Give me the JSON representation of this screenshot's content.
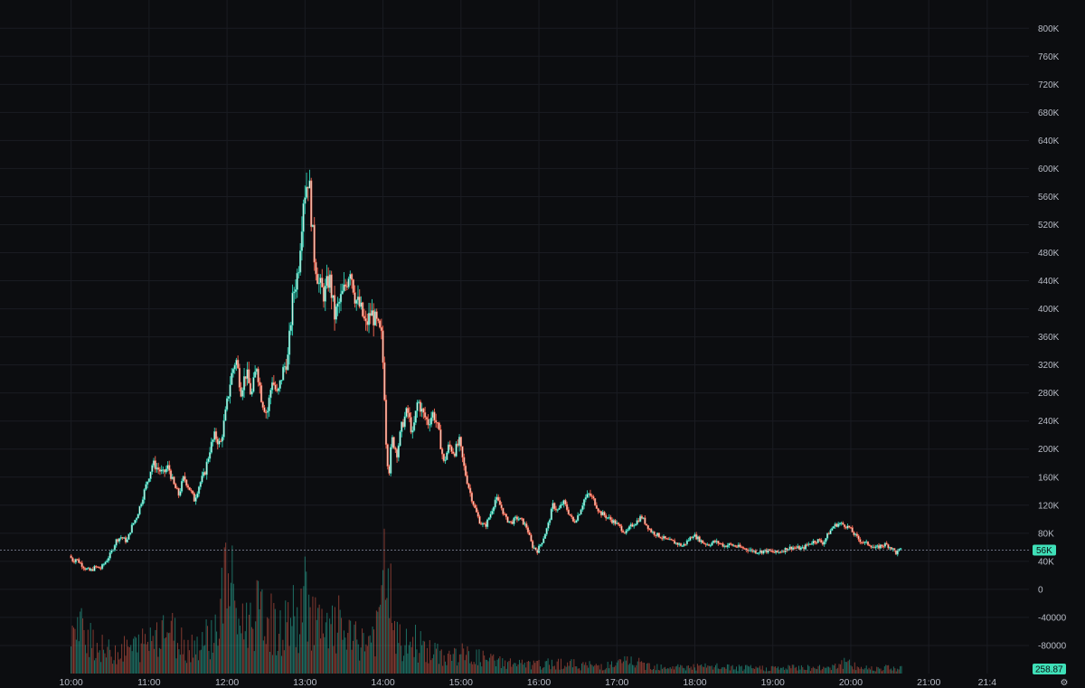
{
  "chart_data": {
    "type": "candlestick",
    "title": "",
    "xlabel": "",
    "ylabel": "",
    "price_axis": {
      "ticks": [
        "800K",
        "760K",
        "720K",
        "680K",
        "640K",
        "600K",
        "560K",
        "520K",
        "480K",
        "440K",
        "400K",
        "360K",
        "320K",
        "280K",
        "240K",
        "200K",
        "160K",
        "120K",
        "80K",
        "40K",
        "0",
        "-40000",
        "-80000"
      ],
      "tick_values": [
        800000,
        760000,
        720000,
        680000,
        640000,
        600000,
        560000,
        520000,
        480000,
        440000,
        400000,
        360000,
        320000,
        280000,
        240000,
        200000,
        160000,
        120000,
        80000,
        40000,
        0,
        -40000,
        -80000
      ],
      "ylim": [
        -120000,
        830000
      ]
    },
    "time_axis": {
      "ticks": [
        "10:00",
        "11:00",
        "12:00",
        "13:00",
        "14:00",
        "15:00",
        "16:00",
        "17:00",
        "18:00",
        "19:00",
        "20:00",
        "21:00",
        "21:4"
      ],
      "tick_minutes": [
        600,
        660,
        720,
        780,
        840,
        900,
        960,
        1020,
        1080,
        1140,
        1200,
        1260,
        1305
      ],
      "xlim_minutes": [
        594,
        1335
      ]
    },
    "last_price": {
      "value": 56000,
      "label": "56K"
    },
    "volume_badge": {
      "label": "258.87"
    },
    "colors": {
      "up": "#2dc0a8",
      "down": "#e7604d",
      "badge": "#3fe0b8",
      "grid": "#1a1c22",
      "last_line": "#6b7080"
    },
    "price_path": [
      [
        600,
        48000
      ],
      [
        603,
        40000
      ],
      [
        605,
        44000
      ],
      [
        608,
        38000
      ],
      [
        612,
        30000
      ],
      [
        616,
        26000
      ],
      [
        620,
        32000
      ],
      [
        624,
        30000
      ],
      [
        628,
        40000
      ],
      [
        632,
        52000
      ],
      [
        636,
        70000
      ],
      [
        640,
        75000
      ],
      [
        644,
        68000
      ],
      [
        648,
        90000
      ],
      [
        652,
        105000
      ],
      [
        656,
        130000
      ],
      [
        660,
        155000
      ],
      [
        664,
        180000
      ],
      [
        668,
        172000
      ],
      [
        672,
        165000
      ],
      [
        676,
        175000
      ],
      [
        680,
        150000
      ],
      [
        684,
        135000
      ],
      [
        688,
        160000
      ],
      [
        692,
        145000
      ],
      [
        696,
        128000
      ],
      [
        700,
        150000
      ],
      [
        704,
        165000
      ],
      [
        708,
        200000
      ],
      [
        712,
        220000
      ],
      [
        716,
        205000
      ],
      [
        720,
        250000
      ],
      [
        724,
        300000
      ],
      [
        728,
        330000
      ],
      [
        732,
        285000
      ],
      [
        736,
        310000
      ],
      [
        740,
        275000
      ],
      [
        744,
        320000
      ],
      [
        748,
        270000
      ],
      [
        752,
        250000
      ],
      [
        756,
        300000
      ],
      [
        760,
        275000
      ],
      [
        764,
        310000
      ],
      [
        768,
        330000
      ],
      [
        772,
        420000
      ],
      [
        776,
        455000
      ],
      [
        780,
        560000
      ],
      [
        784,
        590000
      ],
      [
        788,
        480000
      ],
      [
        792,
        435000
      ],
      [
        796,
        420000
      ],
      [
        800,
        445000
      ],
      [
        804,
        390000
      ],
      [
        808,
        410000
      ],
      [
        812,
        430000
      ],
      [
        816,
        460000
      ],
      [
        820,
        415000
      ],
      [
        824,
        400000
      ],
      [
        828,
        375000
      ],
      [
        832,
        395000
      ],
      [
        836,
        380000
      ],
      [
        840,
        360000
      ],
      [
        842,
        300000
      ],
      [
        844,
        190000
      ],
      [
        846,
        170000
      ],
      [
        848,
        215000
      ],
      [
        852,
        195000
      ],
      [
        856,
        235000
      ],
      [
        860,
        255000
      ],
      [
        864,
        220000
      ],
      [
        868,
        270000
      ],
      [
        872,
        250000
      ],
      [
        876,
        238000
      ],
      [
        880,
        252000
      ],
      [
        884,
        225000
      ],
      [
        888,
        180000
      ],
      [
        892,
        205000
      ],
      [
        896,
        195000
      ],
      [
        900,
        210000
      ],
      [
        904,
        170000
      ],
      [
        908,
        140000
      ],
      [
        912,
        115000
      ],
      [
        916,
        95000
      ],
      [
        920,
        90000
      ],
      [
        924,
        108000
      ],
      [
        928,
        130000
      ],
      [
        932,
        118000
      ],
      [
        936,
        100000
      ],
      [
        940,
        95000
      ],
      [
        944,
        102000
      ],
      [
        948,
        98000
      ],
      [
        952,
        88000
      ],
      [
        956,
        62000
      ],
      [
        960,
        55000
      ],
      [
        964,
        70000
      ],
      [
        968,
        90000
      ],
      [
        972,
        120000
      ],
      [
        976,
        112000
      ],
      [
        980,
        125000
      ],
      [
        984,
        110000
      ],
      [
        988,
        95000
      ],
      [
        992,
        108000
      ],
      [
        996,
        128000
      ],
      [
        1000,
        136000
      ],
      [
        1004,
        125000
      ],
      [
        1008,
        110000
      ],
      [
        1012,
        105000
      ],
      [
        1016,
        100000
      ],
      [
        1020,
        95000
      ],
      [
        1024,
        88000
      ],
      [
        1028,
        80000
      ],
      [
        1032,
        90000
      ],
      [
        1036,
        96000
      ],
      [
        1040,
        104000
      ],
      [
        1044,
        92000
      ],
      [
        1048,
        82000
      ],
      [
        1052,
        78000
      ],
      [
        1056,
        74000
      ],
      [
        1060,
        70000
      ],
      [
        1064,
        68000
      ],
      [
        1068,
        65000
      ],
      [
        1072,
        62000
      ],
      [
        1076,
        70000
      ],
      [
        1080,
        78000
      ],
      [
        1084,
        72000
      ],
      [
        1088,
        66000
      ],
      [
        1092,
        64000
      ],
      [
        1096,
        68000
      ],
      [
        1100,
        66000
      ],
      [
        1104,
        62000
      ],
      [
        1108,
        64000
      ],
      [
        1112,
        62000
      ],
      [
        1116,
        60000
      ],
      [
        1120,
        58000
      ],
      [
        1124,
        56000
      ],
      [
        1128,
        54000
      ],
      [
        1132,
        54000
      ],
      [
        1136,
        55000
      ],
      [
        1140,
        54000
      ],
      [
        1144,
        52000
      ],
      [
        1148,
        55000
      ],
      [
        1152,
        58000
      ],
      [
        1156,
        60000
      ],
      [
        1160,
        59000
      ],
      [
        1164,
        58000
      ],
      [
        1168,
        64000
      ],
      [
        1172,
        68000
      ],
      [
        1176,
        70000
      ],
      [
        1180,
        66000
      ],
      [
        1184,
        80000
      ],
      [
        1188,
        90000
      ],
      [
        1192,
        94000
      ],
      [
        1196,
        92000
      ],
      [
        1200,
        88000
      ],
      [
        1204,
        78000
      ],
      [
        1208,
        70000
      ],
      [
        1212,
        66000
      ],
      [
        1216,
        64000
      ],
      [
        1220,
        58000
      ],
      [
        1224,
        62000
      ],
      [
        1228,
        64000
      ],
      [
        1232,
        60000
      ],
      [
        1236,
        52000
      ],
      [
        1239,
        56000
      ]
    ],
    "volume_peaks": [
      [
        604,
        0.35
      ],
      [
        612,
        0.45
      ],
      [
        620,
        0.25
      ],
      [
        628,
        0.2
      ],
      [
        640,
        0.22
      ],
      [
        650,
        0.25
      ],
      [
        660,
        0.3
      ],
      [
        664,
        0.4
      ],
      [
        672,
        0.45
      ],
      [
        680,
        0.35
      ],
      [
        690,
        0.25
      ],
      [
        700,
        0.3
      ],
      [
        712,
        0.4
      ],
      [
        720,
        0.95
      ],
      [
        724,
        0.75
      ],
      [
        730,
        0.45
      ],
      [
        744,
        0.55
      ],
      [
        752,
        0.5
      ],
      [
        760,
        0.35
      ],
      [
        770,
        0.55
      ],
      [
        776,
        0.4
      ],
      [
        780,
        0.8
      ],
      [
        784,
        0.6
      ],
      [
        790,
        0.45
      ],
      [
        796,
        0.35
      ],
      [
        806,
        0.45
      ],
      [
        816,
        0.3
      ],
      [
        828,
        0.3
      ],
      [
        836,
        0.4
      ],
      [
        840,
        0.8
      ],
      [
        844,
        1.0
      ],
      [
        848,
        0.35
      ],
      [
        856,
        0.25
      ],
      [
        864,
        0.3
      ],
      [
        876,
        0.2
      ],
      [
        888,
        0.15
      ],
      [
        900,
        0.18
      ],
      [
        912,
        0.15
      ],
      [
        924,
        0.12
      ],
      [
        936,
        0.1
      ],
      [
        950,
        0.08
      ],
      [
        964,
        0.08
      ],
      [
        972,
        0.1
      ],
      [
        980,
        0.09
      ],
      [
        992,
        0.08
      ],
      [
        1004,
        0.07
      ],
      [
        1020,
        0.08
      ],
      [
        1028,
        0.12
      ],
      [
        1040,
        0.08
      ],
      [
        1052,
        0.07
      ],
      [
        1068,
        0.06
      ],
      [
        1084,
        0.06
      ],
      [
        1100,
        0.06
      ],
      [
        1116,
        0.05
      ],
      [
        1132,
        0.05
      ],
      [
        1148,
        0.05
      ],
      [
        1164,
        0.06
      ],
      [
        1176,
        0.05
      ],
      [
        1188,
        0.08
      ],
      [
        1196,
        0.1
      ],
      [
        1204,
        0.06
      ],
      [
        1216,
        0.05
      ],
      [
        1228,
        0.06
      ],
      [
        1236,
        0.05
      ]
    ]
  }
}
